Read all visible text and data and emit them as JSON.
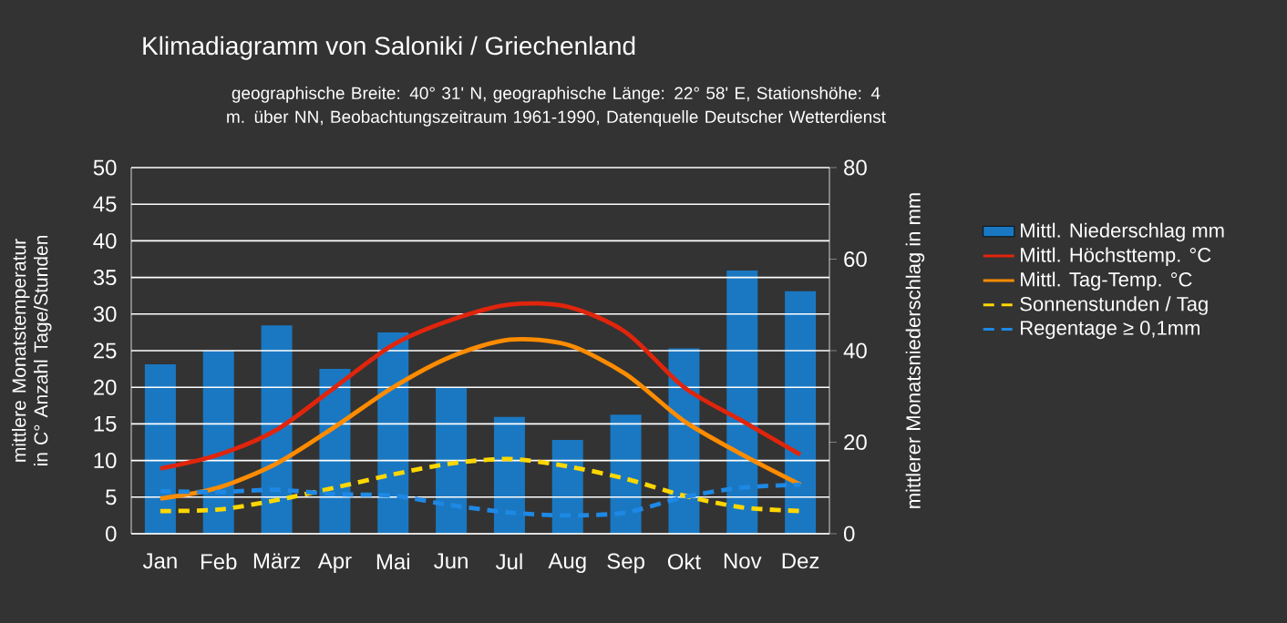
{
  "chart_data": {
    "type": "bar",
    "title": "Klimadiagramm von Saloniki  / Griechenland",
    "subtitle": "geographische Breite: 40° 31' N, geographische Länge: 22° 58' E, Stationshöhe: 4 m. über NN, Beobachtungszeitraum 1961-1990, Datenquelle Deutscher Wetterdienst",
    "categories": [
      "Jan",
      "Feb",
      "März",
      "Apr",
      "Mai",
      "Jun",
      "Jul",
      "Aug",
      "Sep",
      "Okt",
      "Nov",
      "Dez"
    ],
    "series": [
      {
        "name": "Mittl. Niederschlag mm",
        "axis": "y2",
        "color": "#1a78c2",
        "values": [
          37,
          40,
          45.5,
          36,
          44,
          32,
          25.5,
          20.5,
          26,
          40.5,
          57.5,
          53
        ]
      },
      {
        "name": "Mittl. Höchsttemp. °C",
        "type": "line",
        "color": "#e0250c",
        "line_style": "solid",
        "values": [
          8.9,
          10.8,
          14.2,
          20,
          25.8,
          29.2,
          31.3,
          31,
          27.5,
          20,
          15.4,
          10.8
        ]
      },
      {
        "name": "Mittl. Tag-Temp. °C",
        "type": "line",
        "color": "#ff8c00",
        "line_style": "solid",
        "values": [
          4.8,
          6.3,
          9.6,
          14.6,
          20,
          24.2,
          26.5,
          25.8,
          21.8,
          15.4,
          10.8,
          6.7
        ]
      },
      {
        "name": "Sonnenstunden / Tag",
        "type": "line",
        "color": "#ffd700",
        "line_style": "dashed",
        "values": [
          3.1,
          3.3,
          4.6,
          6.3,
          8.1,
          9.6,
          10.2,
          9.2,
          7.5,
          5.2,
          3.6,
          3.1
        ]
      },
      {
        "name": "Regentage ≥ 0,1mm",
        "type": "line",
        "color": "#1e88e5",
        "line_style": "dashed",
        "values": [
          5.8,
          5.7,
          6,
          5.4,
          5.2,
          3.9,
          2.9,
          2.5,
          2.9,
          5,
          6.3,
          6.7
        ]
      }
    ],
    "ylabel": "mittlere Monatstemperatur in C° Anzahl Tage/Stunden",
    "y2label": "mittlerer Monatsniederschlag in mm",
    "ylim": [
      0,
      50
    ],
    "yticks": [
      0,
      5,
      10,
      15,
      20,
      25,
      30,
      35,
      40,
      45,
      50
    ],
    "y2lim": [
      0,
      80
    ],
    "y2ticks": [
      0,
      20,
      40,
      60,
      80
    ],
    "grid": "y",
    "legend": "right"
  }
}
